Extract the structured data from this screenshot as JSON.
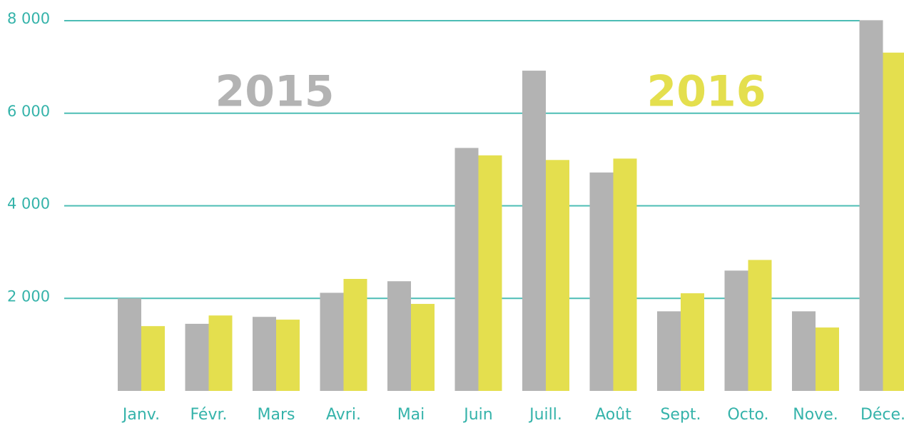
{
  "chart_data": {
    "type": "bar",
    "categories": [
      "Janv.",
      "Févr.",
      "Mars",
      "Avri.",
      "Mai",
      "Juin",
      "Juill.",
      "Août",
      "Sept.",
      "Octo.",
      "Nove.",
      "Déce."
    ],
    "series": [
      {
        "name": "2015",
        "color": "#b3b3b3",
        "values": [
          2000,
          1450,
          1600,
          2120,
          2370,
          5250,
          6920,
          4720,
          1720,
          2600,
          1720,
          8010
        ]
      },
      {
        "name": "2016",
        "color": "#e4df4e",
        "values": [
          1400,
          1630,
          1540,
          2420,
          1880,
          5090,
          4990,
          5020,
          2110,
          2830,
          1370,
          7310
        ]
      }
    ],
    "ylim": [
      0,
      8000
    ],
    "yticks": [
      {
        "value": 2000,
        "label": "2 000"
      },
      {
        "value": 4000,
        "label": "4 000"
      },
      {
        "value": 6000,
        "label": "6 000"
      },
      {
        "value": 8000,
        "label": "8 000"
      }
    ],
    "grid": true,
    "grid_color": "#4dbdb5",
    "label_color": "#35b3aa"
  }
}
